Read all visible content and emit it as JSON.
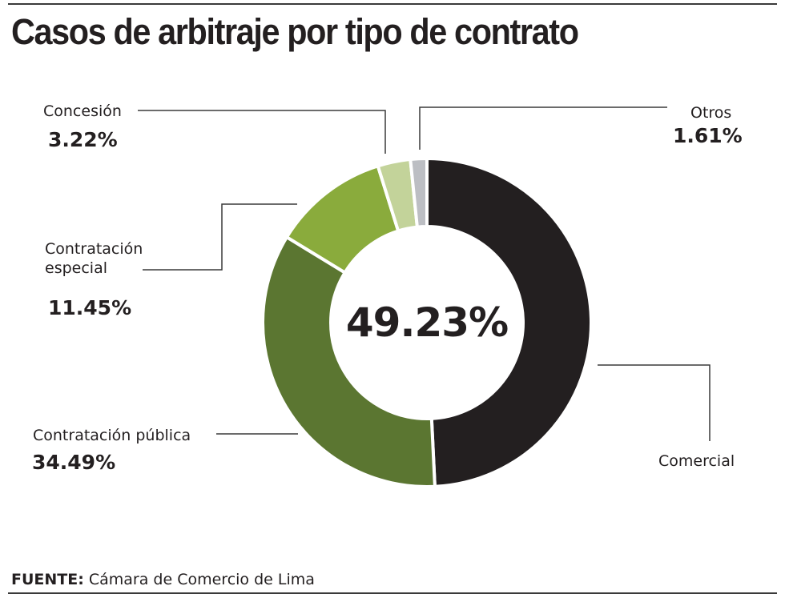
{
  "title": "Casos de arbitraje por tipo de contrato",
  "center_label": "49.23%",
  "source": {
    "label": "FUENTE:",
    "text": "Cámara de Comercio de Lima"
  },
  "colors": {
    "Comercial": "#231f20",
    "Contratación pública": "#5b7631",
    "Contratación especial": "#8aab3c",
    "Concesión": "#c3d39a",
    "Otros": "#bcbec3",
    "leader": "#3a3a3a"
  },
  "chart_data": {
    "type": "pie",
    "variant": "donut",
    "title": "Casos de arbitraje por tipo de contrato",
    "categories": [
      "Comercial",
      "Contratación pública",
      "Contratación especial",
      "Concesión",
      "Otros"
    ],
    "values": [
      49.23,
      34.49,
      11.45,
      3.22,
      1.61
    ],
    "labels": [
      {
        "name": "Comercial",
        "value_text": ""
      },
      {
        "name": "Contratación pública",
        "value_text": "34.49%"
      },
      {
        "name": "Contratación especial",
        "name_lines": [
          "Contratación",
          "especial"
        ],
        "value_text": "11.45%"
      },
      {
        "name": "Concesión",
        "value_text": "3.22%"
      },
      {
        "name": "Otros",
        "value_text": "1.61%"
      }
    ],
    "unit": "%",
    "start": "top",
    "direction": "clockwise"
  }
}
